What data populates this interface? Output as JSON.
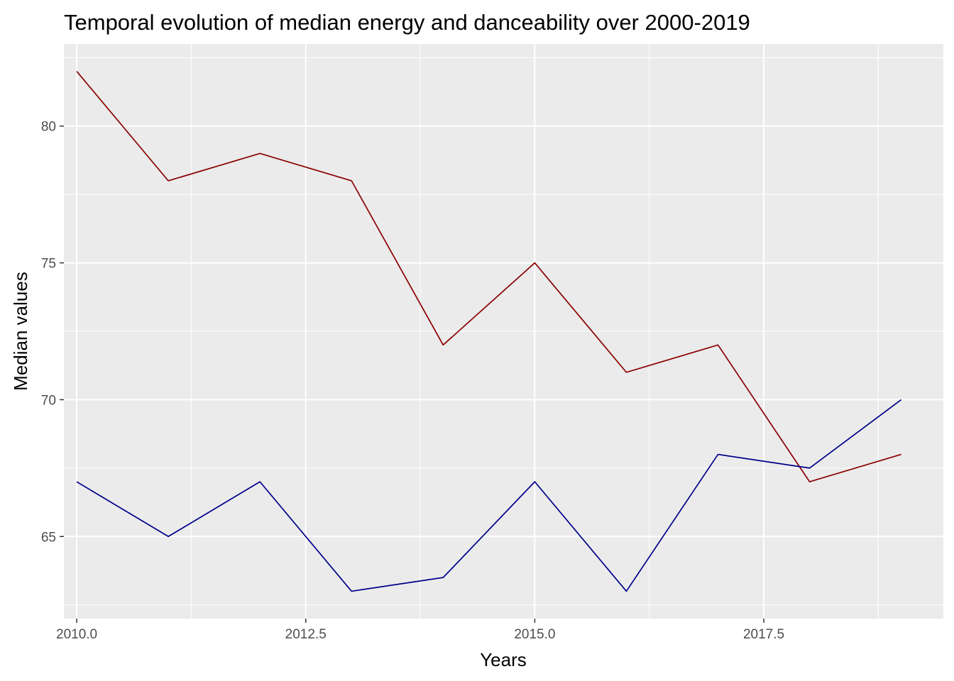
{
  "chart_data": {
    "type": "line",
    "title": "Temporal evolution of median energy and danceability over 2000-2019",
    "xlabel": "Years",
    "ylabel": "Median values",
    "x": [
      2010,
      2011,
      2012,
      2013,
      2014,
      2015,
      2016,
      2017,
      2018,
      2019
    ],
    "xlim": [
      2009.86,
      2019.46
    ],
    "ylim": [
      62.0,
      83.0
    ],
    "xticks": [
      2010.0,
      2012.5,
      2015.0,
      2017.5
    ],
    "xtick_labels": [
      "2010.0",
      "2012.5",
      "2015.0",
      "2017.5"
    ],
    "yticks": [
      65,
      70,
      75,
      80
    ],
    "ytick_labels": [
      "65",
      "70",
      "75",
      "80"
    ],
    "grid": true,
    "legend": "none",
    "panel_background": "#ebebeb",
    "grid_color": "#ffffff",
    "series": [
      {
        "color": "#8b0000",
        "values": [
          82,
          78,
          79,
          78,
          72,
          75,
          71,
          72,
          67,
          68
        ]
      },
      {
        "color": "#00008b",
        "values": [
          67,
          65,
          67,
          63,
          63.5,
          67,
          63,
          68,
          67.5,
          70
        ]
      }
    ]
  }
}
